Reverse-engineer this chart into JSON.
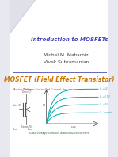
{
  "bg_color": "#e8e8f0",
  "slide_bg": "#ffffff",
  "title": "Introduction to MOSFETs",
  "title_color": "#4444bb",
  "author1": "Michel M. Maharbiz",
  "author2": "Vivek Subramanian",
  "author_color": "#444444",
  "section_title": "MOSFET (Field Effect Transistor)",
  "section_title_color": "#cc7700",
  "subtitle_label1": "Active Device: ",
  "subtitle_label2": "Voltage Controlled Current Source",
  "subtitle_color1": "#444444",
  "subtitle_color2": "#cc2222",
  "curve_color": "#00aaaa",
  "divider_color": "#6666bb",
  "bottom_label": "Gate voltage controls drain/source current",
  "bottom_label_color": "#336633",
  "corner_color": "#e0e0e8",
  "corner_fold_color": "#c8c8d8"
}
